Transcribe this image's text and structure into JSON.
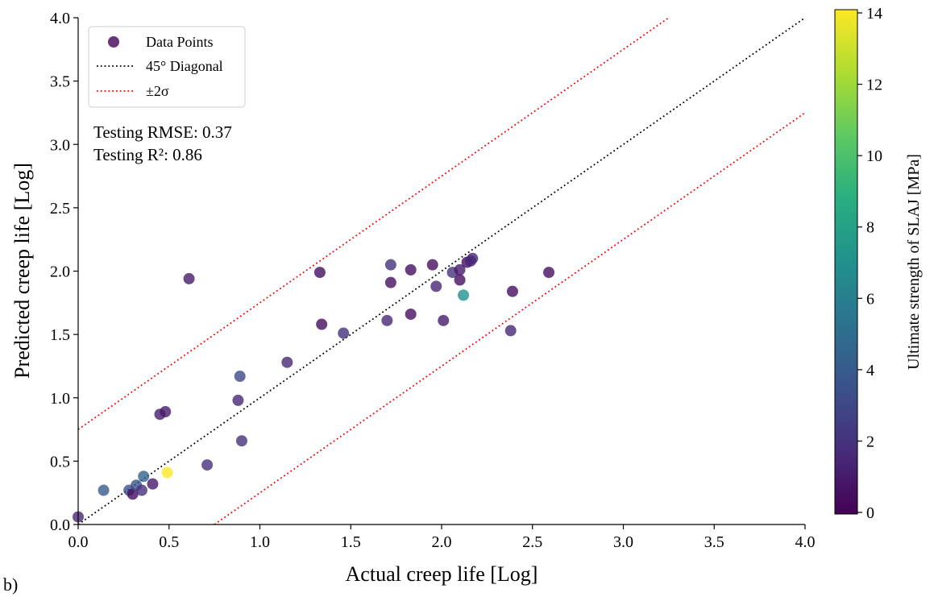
{
  "panel_label": "b)",
  "stats": {
    "rmse": "Testing RMSE: 0.37",
    "r2": "Testing R²: 0.86"
  },
  "legend": {
    "placement": "upper-left",
    "entries": [
      "Data Points",
      "45° Diagonal",
      "±2σ"
    ]
  },
  "colors": {
    "diagonal": "#000000",
    "sigma_lines": "#ff0000",
    "colormap": [
      "#440154",
      "#472d7b",
      "#3b528b",
      "#2c728e",
      "#21918c",
      "#28ae80",
      "#5ec962",
      "#addc30",
      "#fde725"
    ]
  },
  "chart_data": {
    "type": "scatter",
    "xlabel": "Actual creep life [Log]",
    "ylabel": "Predicted creep life [Log]",
    "xlim": [
      0,
      4
    ],
    "ylim": [
      0,
      4
    ],
    "xticks": [
      "0.0",
      "0.5",
      "1.0",
      "1.5",
      "2.0",
      "2.5",
      "3.0",
      "3.5",
      "4.0"
    ],
    "yticks": [
      "0.0",
      "0.5",
      "1.0",
      "1.5",
      "2.0",
      "2.5",
      "3.0",
      "3.5",
      "4.0"
    ],
    "grid": false,
    "series": [
      {
        "name": "Data Points",
        "points": [
          {
            "x": 0.0,
            "y": 0.06,
            "c": 1.5
          },
          {
            "x": 0.14,
            "y": 0.27,
            "c": 4.0
          },
          {
            "x": 0.28,
            "y": 0.27,
            "c": 3.5
          },
          {
            "x": 0.3,
            "y": 0.24,
            "c": 0.5
          },
          {
            "x": 0.32,
            "y": 0.31,
            "c": 3.5
          },
          {
            "x": 0.35,
            "y": 0.27,
            "c": 2.0
          },
          {
            "x": 0.36,
            "y": 0.38,
            "c": 4.5
          },
          {
            "x": 0.41,
            "y": 0.32,
            "c": 1.0
          },
          {
            "x": 0.45,
            "y": 0.87,
            "c": 1.0
          },
          {
            "x": 0.49,
            "y": 0.41,
            "c": 14.0
          },
          {
            "x": 0.48,
            "y": 0.89,
            "c": 1.0
          },
          {
            "x": 0.61,
            "y": 1.94,
            "c": 1.0
          },
          {
            "x": 0.71,
            "y": 0.47,
            "c": 2.0
          },
          {
            "x": 0.88,
            "y": 0.98,
            "c": 1.5
          },
          {
            "x": 0.89,
            "y": 1.17,
            "c": 3.0
          },
          {
            "x": 0.9,
            "y": 0.66,
            "c": 2.0
          },
          {
            "x": 1.15,
            "y": 1.28,
            "c": 1.5
          },
          {
            "x": 1.33,
            "y": 1.99,
            "c": 0.5
          },
          {
            "x": 1.34,
            "y": 1.58,
            "c": 0.5
          },
          {
            "x": 1.46,
            "y": 1.51,
            "c": 2.0
          },
          {
            "x": 1.7,
            "y": 1.61,
            "c": 1.5
          },
          {
            "x": 1.72,
            "y": 2.05,
            "c": 2.0
          },
          {
            "x": 1.72,
            "y": 1.91,
            "c": 0.5
          },
          {
            "x": 1.83,
            "y": 2.01,
            "c": 0.5
          },
          {
            "x": 1.83,
            "y": 1.66,
            "c": 0.5
          },
          {
            "x": 1.95,
            "y": 2.05,
            "c": 0.5
          },
          {
            "x": 1.97,
            "y": 1.88,
            "c": 1.5
          },
          {
            "x": 2.01,
            "y": 1.61,
            "c": 1.0
          },
          {
            "x": 2.06,
            "y": 1.99,
            "c": 2.0
          },
          {
            "x": 2.1,
            "y": 2.01,
            "c": 1.0
          },
          {
            "x": 2.1,
            "y": 1.93,
            "c": 0.5
          },
          {
            "x": 2.12,
            "y": 1.81,
            "c": 7.0
          },
          {
            "x": 2.14,
            "y": 2.07,
            "c": 0.5
          },
          {
            "x": 2.16,
            "y": 2.08,
            "c": 1.5
          },
          {
            "x": 2.17,
            "y": 2.1,
            "c": 1.5
          },
          {
            "x": 2.38,
            "y": 1.53,
            "c": 1.5
          },
          {
            "x": 2.39,
            "y": 1.84,
            "c": 0.5
          },
          {
            "x": 2.59,
            "y": 1.99,
            "c": 0.5
          }
        ]
      }
    ],
    "lines": [
      {
        "name": "45° Diagonal",
        "style": "dotted",
        "x": [
          0,
          4
        ],
        "y": [
          0,
          4
        ]
      },
      {
        "name": "±2σ",
        "style": "dotted",
        "x": [
          0,
          3.25
        ],
        "y": [
          0.75,
          4.0
        ]
      },
      {
        "name": "±2σ",
        "style": "dotted",
        "x": [
          0.75,
          4.0
        ],
        "y": [
          0,
          3.25
        ]
      }
    ],
    "colorbar": {
      "label": "Ultimate strength of SLAJ [MPa]",
      "range": [
        0,
        14
      ],
      "ticks": [
        "0",
        "2",
        "4",
        "6",
        "8",
        "10",
        "12",
        "14"
      ]
    }
  }
}
